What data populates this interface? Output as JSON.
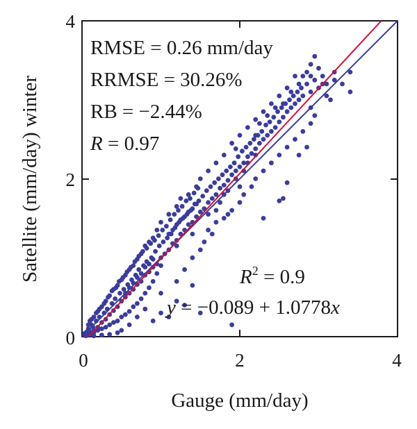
{
  "chart_data": {
    "type": "scatter",
    "xlabel": "Gauge (mm/day)",
    "ylabel": "Satellite (mm/day) winter",
    "xlim": [
      0,
      4
    ],
    "ylim": [
      0,
      4
    ],
    "x_ticks": [
      "0",
      "2",
      "4"
    ],
    "y_ticks": [
      "0",
      "2",
      "4"
    ],
    "grid": false,
    "point_color": "#3a3d9a",
    "fit_line_color": "#d0103a",
    "identity_line_color": "#3a3d9a",
    "stats": {
      "rmse": "RMSE = 0.26 mm/day",
      "rrmse": "RRMSE = 30.26%",
      "rb": "RB = −2.44%",
      "r_name": "R",
      "r_value": " = 0.97",
      "r2_name": "R",
      "r2_sup": "2",
      "r2_value": " = 0.9",
      "eq_y": "y",
      "eq_mid": " = −0.089 + 1.0778",
      "eq_x": "x"
    },
    "fit": {
      "intercept": -0.089,
      "slope": 1.0778
    },
    "identity": {
      "intercept": 0,
      "slope": 1
    },
    "points": [
      [
        0.05,
        0.02
      ],
      [
        0.08,
        0.1
      ],
      [
        0.1,
        0.05
      ],
      [
        0.12,
        0.15
      ],
      [
        0.15,
        0.08
      ],
      [
        0.18,
        0.2
      ],
      [
        0.2,
        0.12
      ],
      [
        0.22,
        0.25
      ],
      [
        0.25,
        0.18
      ],
      [
        0.28,
        0.3
      ],
      [
        0.3,
        0.22
      ],
      [
        0.32,
        0.35
      ],
      [
        0.35,
        0.28
      ],
      [
        0.38,
        0.42
      ],
      [
        0.4,
        0.33
      ],
      [
        0.42,
        0.48
      ],
      [
        0.45,
        0.38
      ],
      [
        0.48,
        0.55
      ],
      [
        0.5,
        0.45
      ],
      [
        0.53,
        0.6
      ],
      [
        0.55,
        0.5
      ],
      [
        0.58,
        0.66
      ],
      [
        0.6,
        0.55
      ],
      [
        0.63,
        0.72
      ],
      [
        0.65,
        0.6
      ],
      [
        0.68,
        0.78
      ],
      [
        0.7,
        0.66
      ],
      [
        0.72,
        0.85
      ],
      [
        0.75,
        0.7
      ],
      [
        0.78,
        0.9
      ],
      [
        0.8,
        0.78
      ],
      [
        0.82,
        0.95
      ],
      [
        0.85,
        0.82
      ],
      [
        0.88,
        1.0
      ],
      [
        0.9,
        0.88
      ],
      [
        0.93,
        1.08
      ],
      [
        0.95,
        0.92
      ],
      [
        0.98,
        1.15
      ],
      [
        1.0,
        1.0
      ],
      [
        1.03,
        1.2
      ],
      [
        1.05,
        1.05
      ],
      [
        1.08,
        1.25
      ],
      [
        1.1,
        1.1
      ],
      [
        1.13,
        1.3
      ],
      [
        1.15,
        1.18
      ],
      [
        1.18,
        1.38
      ],
      [
        1.2,
        1.22
      ],
      [
        1.23,
        1.45
      ],
      [
        1.25,
        1.3
      ],
      [
        1.28,
        1.5
      ],
      [
        1.3,
        1.35
      ],
      [
        1.33,
        1.55
      ],
      [
        1.35,
        1.42
      ],
      [
        1.38,
        1.6
      ],
      [
        1.4,
        1.45
      ],
      [
        1.43,
        1.68
      ],
      [
        1.45,
        1.52
      ],
      [
        1.48,
        1.72
      ],
      [
        1.5,
        1.58
      ],
      [
        1.53,
        1.78
      ],
      [
        1.55,
        1.62
      ],
      [
        1.58,
        1.85
      ],
      [
        1.6,
        1.7
      ],
      [
        1.63,
        1.9
      ],
      [
        1.65,
        1.75
      ],
      [
        1.68,
        1.95
      ],
      [
        1.7,
        1.8
      ],
      [
        1.73,
        2.0
      ],
      [
        1.75,
        1.88
      ],
      [
        1.78,
        2.05
      ],
      [
        1.8,
        1.92
      ],
      [
        1.83,
        2.1
      ],
      [
        1.85,
        1.98
      ],
      [
        1.88,
        2.15
      ],
      [
        1.9,
        2.05
      ],
      [
        1.93,
        2.2
      ],
      [
        1.95,
        2.1
      ],
      [
        1.98,
        2.28
      ],
      [
        2.0,
        2.15
      ],
      [
        2.03,
        2.35
      ],
      [
        2.05,
        2.2
      ],
      [
        2.08,
        2.4
      ],
      [
        2.1,
        2.28
      ],
      [
        2.13,
        2.45
      ],
      [
        2.15,
        2.32
      ],
      [
        2.18,
        2.5
      ],
      [
        2.2,
        2.38
      ],
      [
        2.23,
        2.55
      ],
      [
        2.25,
        2.45
      ],
      [
        2.28,
        2.6
      ],
      [
        2.3,
        2.5
      ],
      [
        2.33,
        2.68
      ],
      [
        2.35,
        2.55
      ],
      [
        2.38,
        2.72
      ],
      [
        2.4,
        2.6
      ],
      [
        2.43,
        2.78
      ],
      [
        2.45,
        2.65
      ],
      [
        2.48,
        2.85
      ],
      [
        2.5,
        2.72
      ],
      [
        2.53,
        2.9
      ],
      [
        2.55,
        2.78
      ],
      [
        2.58,
        2.95
      ],
      [
        2.6,
        2.85
      ],
      [
        2.63,
        3.0
      ],
      [
        2.65,
        2.9
      ],
      [
        2.68,
        3.05
      ],
      [
        2.7,
        2.95
      ],
      [
        2.73,
        3.1
      ],
      [
        2.75,
        3.0
      ],
      [
        2.78,
        3.15
      ],
      [
        2.8,
        3.05
      ],
      [
        2.85,
        3.2
      ],
      [
        2.9,
        3.1
      ],
      [
        2.95,
        3.25
      ],
      [
        3.0,
        3.15
      ],
      [
        3.05,
        3.3
      ],
      [
        3.1,
        3.2
      ],
      [
        3.2,
        3.35
      ],
      [
        3.4,
        3.35
      ],
      [
        3.4,
        3.1
      ],
      [
        2.95,
        3.55
      ],
      [
        2.9,
        3.45
      ],
      [
        2.85,
        3.35
      ],
      [
        3.0,
        3.4
      ],
      [
        2.7,
        3.3
      ],
      [
        2.6,
        3.15
      ],
      [
        2.5,
        3.05
      ],
      [
        2.55,
        2.95
      ],
      [
        2.4,
        2.95
      ],
      [
        2.3,
        2.85
      ],
      [
        2.2,
        2.75
      ],
      [
        2.1,
        2.65
      ],
      [
        2.0,
        2.55
      ],
      [
        1.9,
        2.45
      ],
      [
        1.95,
        2.38
      ],
      [
        1.8,
        2.3
      ],
      [
        1.7,
        2.2
      ],
      [
        1.6,
        2.1
      ],
      [
        1.5,
        2.0
      ],
      [
        1.45,
        1.9
      ],
      [
        1.35,
        1.8
      ],
      [
        1.25,
        1.75
      ],
      [
        1.2,
        1.65
      ],
      [
        1.1,
        1.55
      ],
      [
        1.0,
        1.45
      ],
      [
        0.95,
        1.35
      ],
      [
        0.9,
        1.25
      ],
      [
        0.85,
        1.2
      ],
      [
        0.8,
        1.15
      ],
      [
        0.75,
        1.05
      ],
      [
        0.7,
        0.98
      ],
      [
        0.65,
        0.9
      ],
      [
        0.6,
        0.85
      ],
      [
        0.55,
        0.78
      ],
      [
        0.5,
        0.72
      ],
      [
        0.45,
        0.65
      ],
      [
        0.4,
        0.6
      ],
      [
        0.35,
        0.52
      ],
      [
        0.3,
        0.45
      ],
      [
        0.25,
        0.38
      ],
      [
        0.2,
        0.32
      ],
      [
        0.15,
        0.25
      ],
      [
        0.1,
        0.2
      ],
      [
        0.08,
        0.15
      ],
      [
        0.12,
        0.22
      ],
      [
        0.18,
        0.3
      ],
      [
        0.22,
        0.35
      ],
      [
        0.28,
        0.42
      ],
      [
        0.33,
        0.5
      ],
      [
        0.38,
        0.58
      ],
      [
        0.43,
        0.62
      ],
      [
        0.47,
        0.7
      ],
      [
        0.52,
        0.75
      ],
      [
        0.57,
        0.82
      ],
      [
        0.62,
        0.88
      ],
      [
        0.67,
        0.95
      ],
      [
        0.72,
        1.02
      ],
      [
        0.77,
        1.08
      ],
      [
        0.82,
        1.12
      ],
      [
        0.87,
        1.18
      ],
      [
        0.92,
        1.22
      ],
      [
        0.97,
        1.28
      ],
      [
        1.02,
        1.35
      ],
      [
        1.07,
        1.4
      ],
      [
        1.12,
        1.48
      ],
      [
        1.17,
        1.55
      ],
      [
        1.22,
        1.6
      ],
      [
        1.27,
        1.65
      ],
      [
        1.32,
        1.72
      ],
      [
        1.37,
        1.75
      ],
      [
        1.42,
        1.82
      ],
      [
        1.47,
        1.88
      ],
      [
        1.0,
        0.55
      ],
      [
        1.2,
        0.7
      ],
      [
        1.3,
        0.85
      ],
      [
        1.4,
        1.0
      ],
      [
        1.5,
        1.1
      ],
      [
        1.55,
        1.2
      ],
      [
        1.65,
        1.3
      ],
      [
        1.7,
        1.45
      ],
      [
        1.8,
        1.5
      ],
      [
        1.9,
        1.6
      ],
      [
        2.0,
        1.7
      ],
      [
        2.05,
        1.8
      ],
      [
        2.15,
        1.9
      ],
      [
        2.2,
        2.0
      ],
      [
        2.3,
        2.1
      ],
      [
        2.4,
        2.2
      ],
      [
        2.5,
        2.3
      ],
      [
        2.6,
        2.4
      ],
      [
        2.7,
        2.5
      ],
      [
        2.8,
        2.6
      ],
      [
        2.9,
        2.7
      ],
      [
        2.95,
        2.8
      ],
      [
        2.55,
        1.75
      ],
      [
        2.6,
        1.95
      ],
      [
        2.5,
        1.72
      ],
      [
        2.3,
        1.5
      ],
      [
        2.0,
        1.9
      ],
      [
        1.85,
        1.55
      ],
      [
        1.6,
        1.35
      ],
      [
        1.7,
        1.6
      ],
      [
        1.4,
        1.3
      ],
      [
        1.2,
        1.15
      ],
      [
        1.0,
        0.9
      ],
      [
        0.95,
        0.8
      ],
      [
        0.9,
        0.7
      ],
      [
        0.85,
        0.62
      ],
      [
        0.8,
        0.55
      ],
      [
        0.75,
        0.48
      ],
      [
        0.7,
        0.42
      ],
      [
        0.65,
        0.38
      ],
      [
        0.6,
        0.32
      ],
      [
        0.55,
        0.28
      ],
      [
        0.5,
        0.25
      ],
      [
        0.45,
        0.2
      ],
      [
        0.4,
        0.18
      ],
      [
        0.35,
        0.15
      ],
      [
        0.3,
        0.12
      ],
      [
        0.25,
        0.1
      ],
      [
        0.2,
        0.08
      ],
      [
        0.15,
        0.05
      ],
      [
        0.1,
        0.03
      ],
      [
        0.05,
        0.01
      ],
      [
        0.03,
        0.04
      ],
      [
        0.06,
        0.06
      ],
      [
        0.09,
        0.08
      ],
      [
        0.14,
        0.12
      ],
      [
        1.9,
        0.15
      ],
      [
        1.0,
        0.3
      ],
      [
        1.3,
        0.4
      ],
      [
        1.5,
        0.3
      ],
      [
        0.9,
        0.2
      ],
      [
        1.1,
        0.25
      ],
      [
        1.2,
        0.45
      ],
      [
        1.4,
        0.65
      ],
      [
        0.8,
        0.35
      ],
      [
        0.7,
        0.25
      ],
      [
        0.6,
        0.15
      ],
      [
        0.5,
        0.08
      ],
      [
        0.45,
        0.05
      ],
      [
        0.35,
        0.03
      ],
      [
        0.25,
        0.02
      ],
      [
        0.15,
        0.01
      ],
      [
        2.2,
        2.55
      ],
      [
        2.25,
        2.7
      ],
      [
        2.35,
        2.8
      ],
      [
        2.45,
        2.9
      ],
      [
        2.65,
        3.1
      ],
      [
        2.75,
        3.2
      ],
      [
        2.8,
        3.3
      ],
      [
        2.9,
        3.3
      ],
      [
        3.05,
        3.2
      ],
      [
        3.1,
        3.05
      ],
      [
        3.15,
        3.0
      ],
      [
        3.2,
        3.25
      ],
      [
        3.3,
        3.2
      ],
      [
        2.85,
        2.4
      ],
      [
        2.75,
        2.3
      ],
      [
        2.9,
        2.9
      ],
      [
        1.6,
        1.55
      ],
      [
        1.75,
        1.7
      ],
      [
        1.8,
        1.8
      ],
      [
        1.85,
        1.85
      ],
      [
        1.95,
        2.0
      ],
      [
        2.05,
        2.1
      ],
      [
        2.1,
        2.2
      ],
      [
        2.2,
        2.3
      ],
      [
        1.1,
        1.3
      ],
      [
        1.15,
        1.35
      ],
      [
        1.2,
        1.42
      ],
      [
        1.25,
        1.48
      ],
      [
        1.3,
        1.52
      ],
      [
        1.35,
        1.58
      ],
      [
        1.4,
        1.62
      ],
      [
        1.45,
        1.68
      ],
      [
        0.55,
        0.55
      ],
      [
        0.6,
        0.62
      ],
      [
        0.65,
        0.68
      ],
      [
        0.7,
        0.75
      ],
      [
        0.75,
        0.8
      ],
      [
        0.8,
        0.88
      ],
      [
        0.85,
        0.92
      ],
      [
        0.9,
        0.98
      ]
    ]
  }
}
